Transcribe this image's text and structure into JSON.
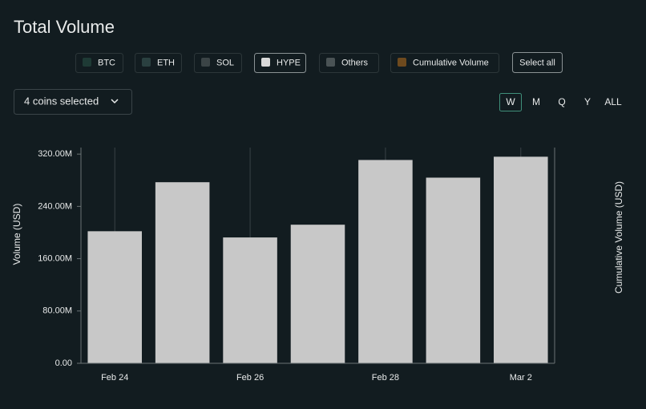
{
  "title": "Total Volume",
  "ui": {
    "filters": [
      {
        "label": "BTC",
        "color": "#1e3a35",
        "active": false
      },
      {
        "label": "ETH",
        "color": "#2a4040",
        "active": false
      },
      {
        "label": "SOL",
        "color": "#3b4446",
        "active": false
      },
      {
        "label": "HYPE",
        "color": "#d9d9d9",
        "active": true
      },
      {
        "label": "Others",
        "color": "#4a5355",
        "active": false
      },
      {
        "label": "Cumulative Volume",
        "color": "#6e4a1e",
        "active": false
      }
    ],
    "select_all": "Select all",
    "coin_selector": "4 coins selected",
    "timeframes": [
      "W",
      "M",
      "Q",
      "Y",
      "ALL"
    ],
    "active_timeframe": 0
  },
  "chart_data": {
    "type": "bar",
    "categories": [
      "Feb 24",
      null,
      "Feb 26",
      null,
      "Feb 28",
      null,
      "Mar 2"
    ],
    "series": [
      {
        "name": "HYPE",
        "color": "#c8c8c8",
        "values": [
          202000000,
          277000000,
          192500000,
          212000000,
          311000000,
          284000000,
          316000000
        ]
      }
    ],
    "ylabel": "Volume (USD)",
    "y2label": "Cumulative Volume (USD)",
    "ylim": [
      0,
      330000000
    ],
    "yticks": [
      {
        "value": 0,
        "label": "0.00"
      },
      {
        "value": 80000000,
        "label": "80.00M"
      },
      {
        "value": 160000000,
        "label": "160.00M"
      },
      {
        "value": 240000000,
        "label": "240.00M"
      },
      {
        "value": 320000000,
        "label": "320.00M"
      }
    ]
  }
}
